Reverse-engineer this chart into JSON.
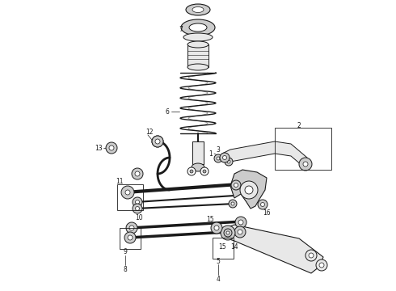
{
  "bg_color": "#ffffff",
  "line_color": "#1a1a1a",
  "gray1": "#cccccc",
  "gray2": "#e8e8e8",
  "gray3": "#aaaaaa"
}
